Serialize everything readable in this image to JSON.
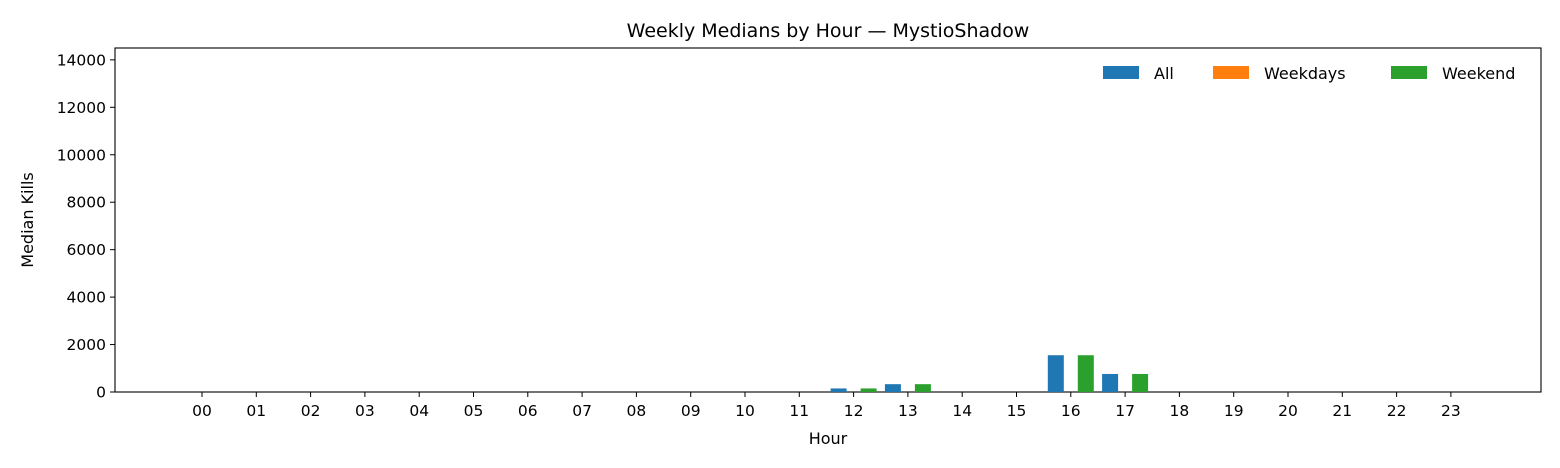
{
  "chart_data": {
    "type": "bar",
    "title": "Weekly Medians by Hour — MystioShadow",
    "xlabel": "Hour",
    "ylabel": "Median Kills",
    "categories": [
      "00",
      "01",
      "02",
      "03",
      "04",
      "05",
      "06",
      "07",
      "08",
      "09",
      "10",
      "11",
      "12",
      "13",
      "14",
      "15",
      "16",
      "17",
      "18",
      "19",
      "20",
      "21",
      "22",
      "23"
    ],
    "ylim": [
      0,
      14500
    ],
    "yticks": [
      0,
      2000,
      4000,
      6000,
      8000,
      10000,
      12000,
      14000
    ],
    "grid": false,
    "legend_position": "top-right",
    "series": [
      {
        "name": "All",
        "color": "#1f77b4",
        "values": [
          0,
          0,
          0,
          0,
          0,
          0,
          0,
          0,
          0,
          0,
          0,
          0,
          150,
          330,
          0,
          0,
          1550,
          760,
          0,
          0,
          0,
          0,
          0,
          0
        ]
      },
      {
        "name": "Weekdays",
        "color": "#ff7f0e",
        "values": [
          0,
          0,
          0,
          0,
          0,
          0,
          0,
          0,
          0,
          0,
          0,
          0,
          0,
          0,
          0,
          0,
          0,
          0,
          0,
          0,
          0,
          0,
          0,
          0
        ]
      },
      {
        "name": "Weekend",
        "color": "#2ca02c",
        "values": [
          0,
          0,
          0,
          0,
          0,
          0,
          0,
          0,
          0,
          0,
          0,
          0,
          150,
          330,
          0,
          0,
          1550,
          760,
          0,
          0,
          0,
          0,
          0,
          0
        ]
      }
    ]
  }
}
